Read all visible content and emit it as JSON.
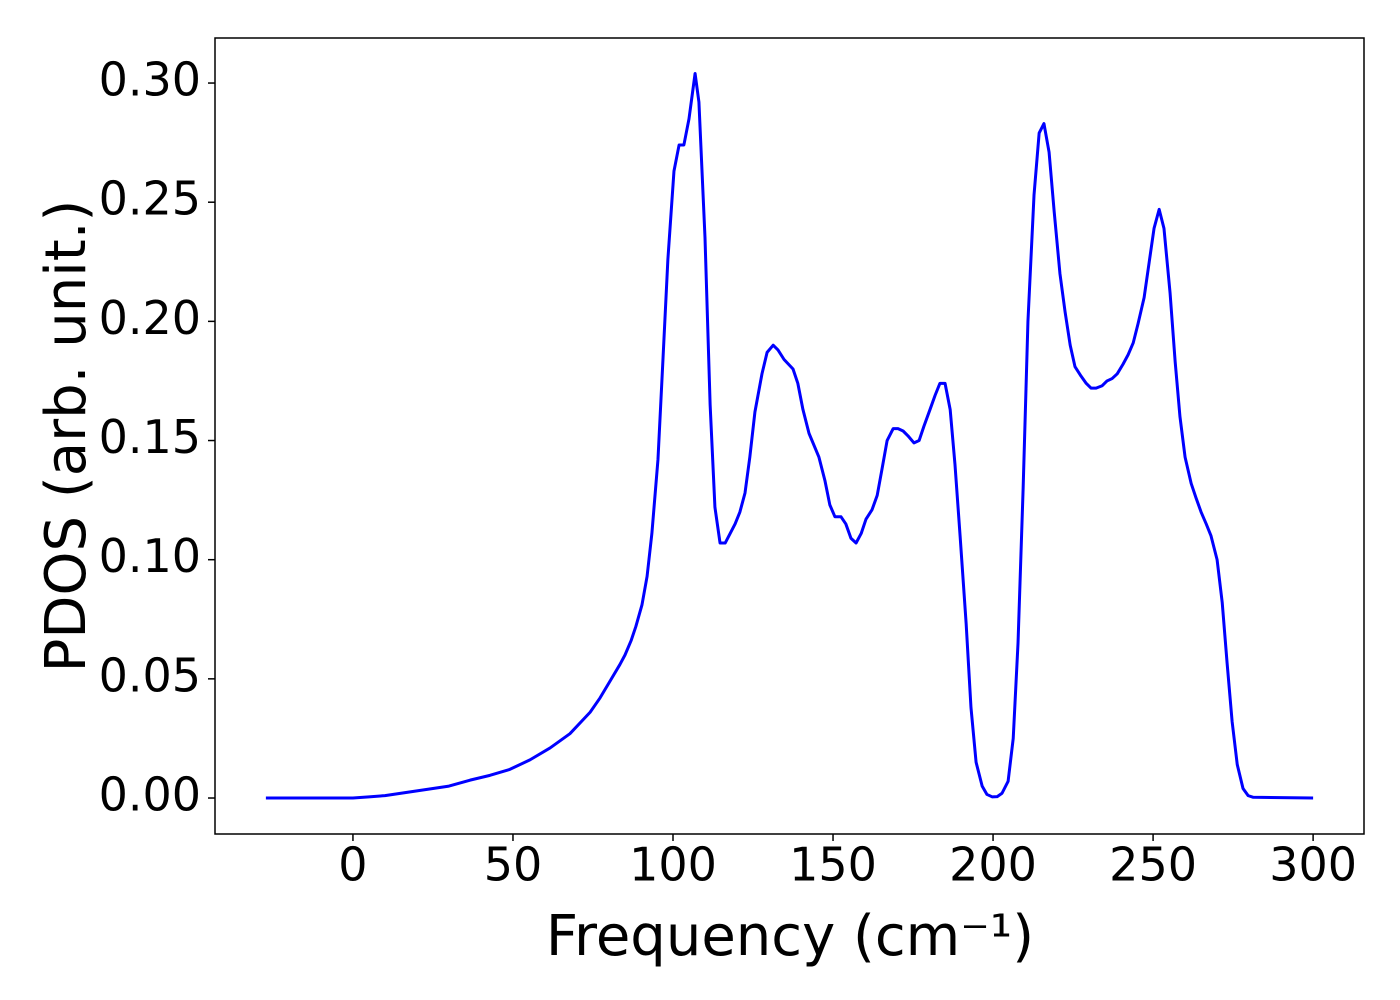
{
  "chart_data": {
    "type": "line",
    "xlabel": "Frequency (cm⁻¹)",
    "ylabel": "PDOS (arb. unit.)",
    "xlim": [
      -43.1,
      315.9
    ],
    "ylim": [
      -0.0151,
      0.3189
    ],
    "xticks": [
      0,
      50,
      100,
      150,
      200,
      250,
      300
    ],
    "yticks": [
      {
        "value": 0,
        "label": "0.00"
      },
      {
        "value": 0.05,
        "label": "0.05"
      },
      {
        "value": 0.1,
        "label": "0.10"
      },
      {
        "value": 0.15,
        "label": "0.15"
      },
      {
        "value": 0.2,
        "label": "0.20"
      },
      {
        "value": 0.25,
        "label": "0.25"
      },
      {
        "value": 0.3,
        "label": "0.30"
      }
    ],
    "grid": false,
    "series": [
      {
        "color": "#0000ff",
        "x": [
          -27.2,
          0,
          5,
          10,
          20,
          30,
          36.6,
          42.8,
          49,
          55.3,
          61.6,
          67.8,
          74.1,
          77.2,
          80.3,
          83.4,
          85,
          86.9,
          88.4,
          90.3,
          91.9,
          93.4,
          95.3,
          96.9,
          98.4,
          100.3,
          101.9,
          103.4,
          105,
          106.9,
          108.1,
          110,
          111.6,
          113.1,
          114.7,
          116.3,
          119.4,
          120.9,
          122.5,
          124,
          125.6,
          127.8,
          129.4,
          131.3,
          132.8,
          134.7,
          137.5,
          139,
          140.6,
          142.5,
          145.6,
          147.5,
          149,
          150.6,
          152.5,
          154,
          155.6,
          157.2,
          158.8,
          160.3,
          162.2,
          163.8,
          165.3,
          166.9,
          168.8,
          170.3,
          171.9,
          173.4,
          175.3,
          176.9,
          178.4,
          180.3,
          181.9,
          183.4,
          185,
          186.6,
          188.1,
          189.7,
          191.6,
          193.1,
          194.7,
          196.6,
          198.1,
          199.7,
          201.3,
          202.8,
          204.7,
          206.3,
          207.8,
          209.4,
          210.9,
          212.8,
          214.4,
          215.9,
          217.5,
          219.1,
          220.9,
          222.5,
          224.1,
          225.6,
          227.5,
          229.1,
          230.6,
          232.2,
          234.1,
          235.6,
          237.2,
          238.8,
          240.6,
          242.2,
          243.8,
          245.3,
          247.2,
          248.8,
          250.3,
          251.9,
          253.4,
          255.3,
          256.9,
          258.4,
          260,
          261.9,
          263.4,
          265,
          266.6,
          268.1,
          270,
          271.6,
          273.1,
          274.7,
          276.3,
          278.1,
          279.7,
          281.3,
          300
        ],
        "values": [
          0,
          0,
          0.0005,
          0.001,
          0.003,
          0.005,
          0.0075,
          0.0095,
          0.012,
          0.016,
          0.021,
          0.027,
          0.036,
          0.042,
          0.049,
          0.056,
          0.06,
          0.066,
          0.072,
          0.081,
          0.093,
          0.111,
          0.142,
          0.185,
          0.226,
          0.263,
          0.274,
          0.274,
          0.285,
          0.304,
          0.292,
          0.235,
          0.165,
          0.122,
          0.107,
          0.107,
          0.115,
          0.12,
          0.128,
          0.143,
          0.162,
          0.178,
          0.187,
          0.19,
          0.188,
          0.184,
          0.18,
          0.174,
          0.163,
          0.153,
          0.143,
          0.133,
          0.123,
          0.118,
          0.118,
          0.115,
          0.109,
          0.107,
          0.111,
          0.117,
          0.121,
          0.127,
          0.138,
          0.15,
          0.155,
          0.155,
          0.154,
          0.152,
          0.149,
          0.15,
          0.156,
          0.163,
          0.169,
          0.174,
          0.174,
          0.163,
          0.14,
          0.11,
          0.073,
          0.038,
          0.015,
          0.005,
          0.0015,
          0.0005,
          0.0006,
          0.002,
          0.007,
          0.025,
          0.065,
          0.13,
          0.2,
          0.253,
          0.279,
          0.283,
          0.271,
          0.246,
          0.22,
          0.204,
          0.19,
          0.181,
          0.177,
          0.174,
          0.172,
          0.172,
          0.173,
          0.175,
          0.176,
          0.178,
          0.182,
          0.186,
          0.191,
          0.199,
          0.21,
          0.225,
          0.239,
          0.247,
          0.239,
          0.212,
          0.183,
          0.16,
          0.143,
          0.132,
          0.126,
          0.12,
          0.115,
          0.11,
          0.1,
          0.082,
          0.057,
          0.032,
          0.014,
          0.004,
          0.001,
          0.0003,
          0
        ]
      }
    ]
  }
}
